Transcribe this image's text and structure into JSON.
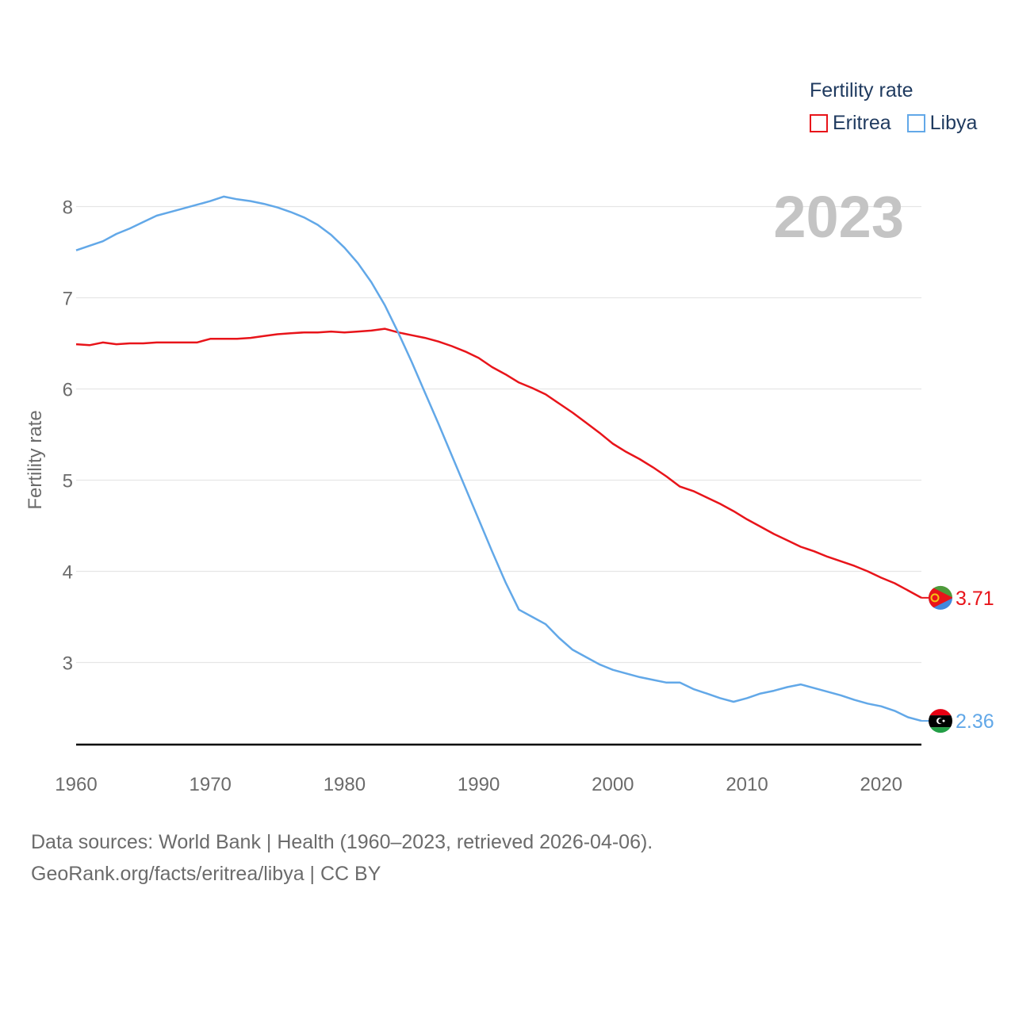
{
  "legend": {
    "title": "Fertility rate",
    "items": [
      {
        "label": "Eritrea",
        "color": "#e8141a"
      },
      {
        "label": "Libya",
        "color": "#62a8e8"
      }
    ]
  },
  "footer": {
    "line1": "Data sources: World Bank | Health (1960–2023, retrieved 2026-04-06).",
    "line2": "GeoRank.org/facts/eritrea/libya | CC BY"
  },
  "chart_data": {
    "type": "line",
    "title": "Fertility rate",
    "xlabel": "",
    "ylabel": "Fertility rate",
    "year_overlay": "2023",
    "xlim": [
      1960,
      2023
    ],
    "ylim": [
      2.1,
      8.3
    ],
    "x_ticks": [
      1960,
      1970,
      1980,
      1990,
      2000,
      2010,
      2020
    ],
    "y_ticks": [
      3,
      4,
      5,
      6,
      7,
      8
    ],
    "grid": true,
    "legend_position": "top-right",
    "x": [
      1960,
      1961,
      1962,
      1963,
      1964,
      1965,
      1966,
      1967,
      1968,
      1969,
      1970,
      1971,
      1972,
      1973,
      1974,
      1975,
      1976,
      1977,
      1978,
      1979,
      1980,
      1981,
      1982,
      1983,
      1984,
      1985,
      1986,
      1987,
      1988,
      1989,
      1990,
      1991,
      1992,
      1993,
      1994,
      1995,
      1996,
      1997,
      1998,
      1999,
      2000,
      2001,
      2002,
      2003,
      2004,
      2005,
      2006,
      2007,
      2008,
      2009,
      2010,
      2011,
      2012,
      2013,
      2014,
      2015,
      2016,
      2017,
      2018,
      2019,
      2020,
      2021,
      2022,
      2023
    ],
    "series": [
      {
        "name": "Eritrea",
        "color": "#e8141a",
        "end_label": "3.71",
        "values": [
          6.49,
          6.48,
          6.51,
          6.49,
          6.5,
          6.5,
          6.51,
          6.51,
          6.51,
          6.51,
          6.55,
          6.55,
          6.55,
          6.56,
          6.58,
          6.6,
          6.61,
          6.62,
          6.62,
          6.63,
          6.62,
          6.63,
          6.64,
          6.66,
          6.62,
          6.59,
          6.56,
          6.52,
          6.47,
          6.41,
          6.34,
          6.24,
          6.16,
          6.07,
          6.01,
          5.94,
          5.84,
          5.74,
          5.63,
          5.52,
          5.4,
          5.31,
          5.23,
          5.14,
          5.04,
          4.93,
          4.88,
          4.81,
          4.74,
          4.66,
          4.57,
          4.49,
          4.41,
          4.34,
          4.27,
          4.22,
          4.16,
          4.11,
          4.06,
          4.0,
          3.93,
          3.87,
          3.79,
          3.71
        ]
      },
      {
        "name": "Libya",
        "color": "#62a8e8",
        "end_label": "2.36",
        "values": [
          7.52,
          7.57,
          7.62,
          7.7,
          7.76,
          7.83,
          7.9,
          7.94,
          7.98,
          8.02,
          8.06,
          8.11,
          8.08,
          8.06,
          8.03,
          7.99,
          7.94,
          7.88,
          7.8,
          7.69,
          7.55,
          7.38,
          7.17,
          6.92,
          6.62,
          6.3,
          5.96,
          5.62,
          5.27,
          4.92,
          4.57,
          4.22,
          3.88,
          3.58,
          3.5,
          3.42,
          3.27,
          3.14,
          3.06,
          2.98,
          2.92,
          2.88,
          2.84,
          2.81,
          2.78,
          2.78,
          2.71,
          2.66,
          2.61,
          2.57,
          2.61,
          2.66,
          2.69,
          2.73,
          2.76,
          2.72,
          2.68,
          2.64,
          2.59,
          2.55,
          2.52,
          2.47,
          2.4,
          2.36
        ]
      }
    ]
  },
  "flags": {
    "eritrea": {
      "green": "#4e9a3a",
      "red": "#e8141a",
      "blue": "#4189dd",
      "emblem": "#f4c414"
    },
    "libya": {
      "red": "#e70013",
      "black": "#000000",
      "green": "#239e46",
      "symbol": "#ffffff"
    }
  }
}
